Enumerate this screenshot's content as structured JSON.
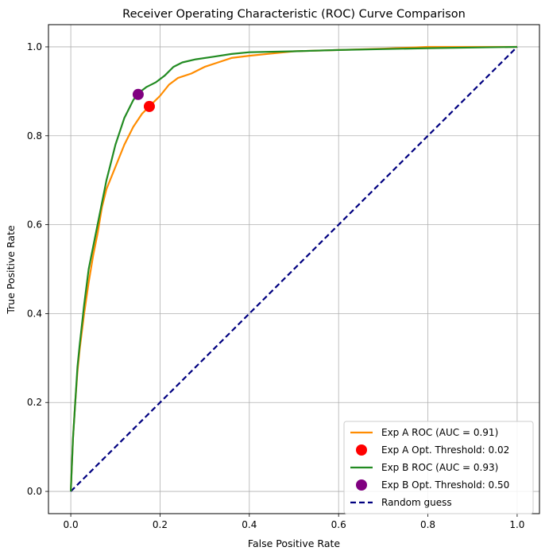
{
  "chart_data": {
    "type": "line",
    "title": "Receiver Operating Characteristic (ROC) Curve Comparison",
    "xlabel": "False Positive Rate",
    "ylabel": "True Positive Rate",
    "xlim": [
      -0.05,
      1.05
    ],
    "ylim": [
      -0.05,
      1.05
    ],
    "xticks": [
      "0.0",
      "0.2",
      "0.4",
      "0.6",
      "0.8",
      "1.0"
    ],
    "yticks": [
      "0.0",
      "0.2",
      "0.4",
      "0.6",
      "0.8",
      "1.0"
    ],
    "grid": true,
    "legend_position": "lower-right",
    "series": [
      {
        "name": "Exp A ROC (AUC = 0.91)",
        "kind": "line",
        "color": "#ff8c00",
        "x": [
          0.0,
          0.005,
          0.01,
          0.015,
          0.02,
          0.03,
          0.04,
          0.05,
          0.06,
          0.07,
          0.08,
          0.1,
          0.12,
          0.14,
          0.16,
          0.18,
          0.2,
          0.22,
          0.24,
          0.27,
          0.3,
          0.33,
          0.36,
          0.4,
          0.45,
          0.5,
          0.6,
          0.7,
          0.8,
          0.9,
          1.0
        ],
        "y": [
          0.0,
          0.12,
          0.2,
          0.27,
          0.32,
          0.4,
          0.47,
          0.53,
          0.58,
          0.64,
          0.68,
          0.73,
          0.78,
          0.82,
          0.85,
          0.87,
          0.89,
          0.915,
          0.93,
          0.94,
          0.955,
          0.965,
          0.975,
          0.98,
          0.985,
          0.99,
          0.993,
          0.996,
          1.0,
          1.0,
          1.0
        ]
      },
      {
        "name": "Exp A Opt. Threshold: 0.02",
        "kind": "point",
        "color": "#ff0000",
        "x": [
          0.176
        ],
        "y": [
          0.866
        ]
      },
      {
        "name": "Exp B ROC (AUC = 0.93)",
        "kind": "line",
        "color": "#228b22",
        "x": [
          0.0,
          0.005,
          0.01,
          0.015,
          0.02,
          0.03,
          0.04,
          0.05,
          0.06,
          0.07,
          0.08,
          0.09,
          0.1,
          0.11,
          0.12,
          0.13,
          0.14,
          0.15,
          0.17,
          0.19,
          0.21,
          0.23,
          0.25,
          0.28,
          0.32,
          0.36,
          0.4,
          0.5,
          0.6,
          0.8,
          1.0
        ],
        "y": [
          0.0,
          0.12,
          0.2,
          0.28,
          0.33,
          0.42,
          0.5,
          0.55,
          0.6,
          0.65,
          0.7,
          0.74,
          0.78,
          0.81,
          0.84,
          0.86,
          0.88,
          0.895,
          0.91,
          0.92,
          0.935,
          0.955,
          0.965,
          0.972,
          0.978,
          0.984,
          0.988,
          0.99,
          0.993,
          0.997,
          1.0
        ]
      },
      {
        "name": "Exp B Opt. Threshold: 0.50",
        "kind": "point",
        "color": "#800080",
        "x": [
          0.151
        ],
        "y": [
          0.893
        ]
      },
      {
        "name": "Random guess",
        "kind": "dashed",
        "color": "#000080",
        "x": [
          0.0,
          1.0
        ],
        "y": [
          0.0,
          1.0
        ]
      }
    ]
  }
}
